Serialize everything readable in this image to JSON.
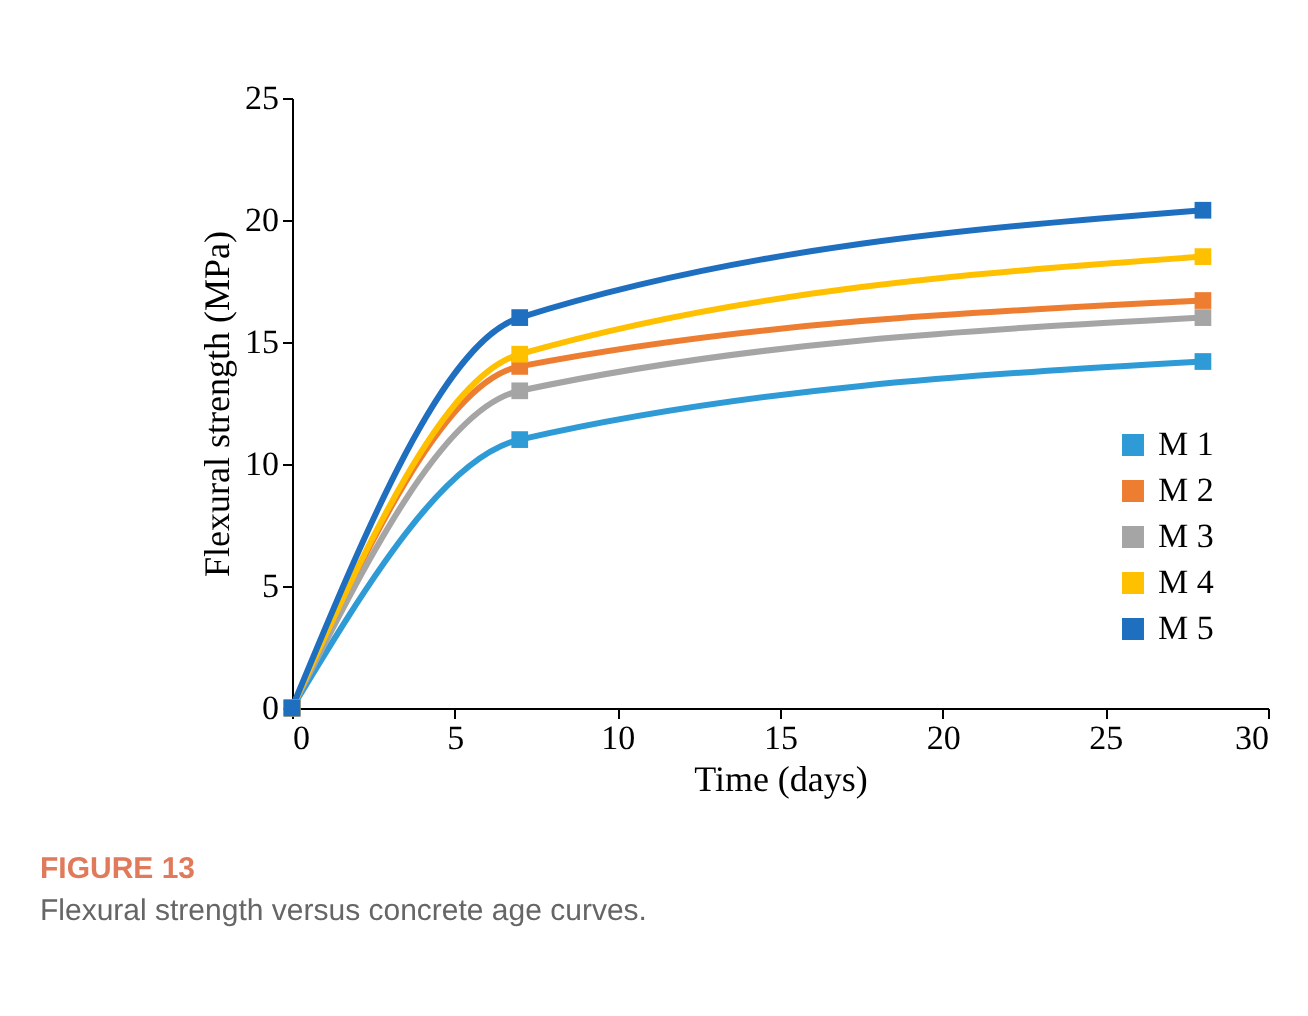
{
  "chart_data": {
    "type": "line",
    "title": "FIGURE 13",
    "subtitle": "Flexural strength versus concrete age curves.",
    "xlabel": "Time (days)",
    "ylabel": "Flexural strength (MPa)",
    "x": [
      0,
      7,
      28
    ],
    "series": [
      {
        "name": "M 1",
        "color": "#2e9bd6",
        "values": [
          0,
          11,
          14.2
        ]
      },
      {
        "name": "M 2",
        "color": "#ed7d31",
        "values": [
          0,
          14,
          16.7
        ]
      },
      {
        "name": "M 3",
        "color": "#a5a5a5",
        "values": [
          0,
          13,
          16
        ]
      },
      {
        "name": "M 4",
        "color": "#ffc000",
        "values": [
          0,
          14.5,
          18.5
        ]
      },
      {
        "name": "M 5",
        "color": "#1f6fc0",
        "values": [
          0,
          16,
          20.4
        ]
      }
    ],
    "xlim": [
      0,
      30
    ],
    "xticks": [
      0,
      5,
      10,
      15,
      20,
      25,
      30
    ],
    "ylim": [
      0,
      25
    ],
    "yticks": [
      0,
      5,
      10,
      15,
      20,
      25
    ],
    "grid": false,
    "legend": "right",
    "marker": "square",
    "line_style": "solid"
  }
}
